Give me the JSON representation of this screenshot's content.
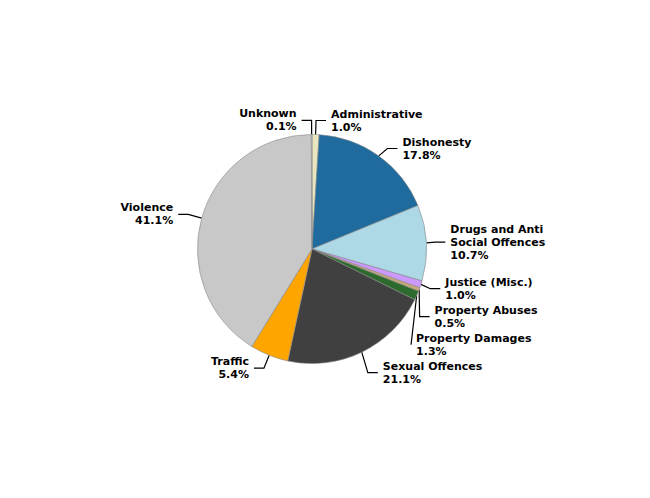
{
  "chart_data": {
    "type": "pie",
    "categories": [
      "Administrative",
      "Dishonesty",
      "Drugs and Anti\nSocial Offences",
      "Justice (Misc.)",
      "Property Abuses",
      "Property Damages",
      "Sexual Offences",
      "Traffic",
      "Violence",
      "Unknown"
    ],
    "values": [
      1.0,
      17.8,
      10.7,
      1.0,
      0.5,
      1.3,
      21.1,
      5.4,
      41.1,
      0.1
    ],
    "value_labels": [
      "1.0%",
      "17.8%",
      "10.7%",
      "1.0%",
      "0.5%",
      "1.3%",
      "21.1%",
      "5.4%",
      "41.1%",
      "0.1%"
    ],
    "colors": [
      "#e8e6c0",
      "#1f6b9e",
      "#add8e6",
      "#cc99ff",
      "#c8a87a",
      "#2d6a2d",
      "#404040",
      "#FFA500",
      "#c8c8c8",
      "#f0f0e0"
    ],
    "data_labels": true
  }
}
